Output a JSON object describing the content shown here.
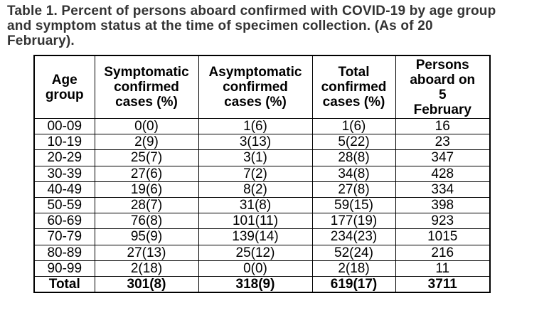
{
  "caption": "Table 1. Percent of persons aboard confirmed with COVID-19 by age group\nand symptom status at the time of specimen collection. (As of 20\nFebruary).",
  "table": {
    "columns": [
      {
        "key": "age_group",
        "label": "Age\ngroup"
      },
      {
        "key": "symptomatic",
        "label": "Symptomatic\nconfirmed\ncases (%)"
      },
      {
        "key": "asymptomatic",
        "label": "Asymptomatic\nconfirmed\ncases (%)"
      },
      {
        "key": "total_confirmed",
        "label": "Total\nconfirmed\ncases (%)"
      },
      {
        "key": "persons_aboard",
        "label": "Persons\naboard on\n5\nFebruary"
      }
    ],
    "rows": [
      {
        "age_group": "00-09",
        "symptomatic": "0(0)",
        "asymptomatic": "1(6)",
        "total_confirmed": "1(6)",
        "persons_aboard": "16"
      },
      {
        "age_group": "10-19",
        "symptomatic": "2(9)",
        "asymptomatic": "3(13)",
        "total_confirmed": "5(22)",
        "persons_aboard": "23"
      },
      {
        "age_group": "20-29",
        "symptomatic": "25(7)",
        "asymptomatic": "3(1)",
        "total_confirmed": "28(8)",
        "persons_aboard": "347"
      },
      {
        "age_group": "30-39",
        "symptomatic": "27(6)",
        "asymptomatic": "7(2)",
        "total_confirmed": "34(8)",
        "persons_aboard": "428"
      },
      {
        "age_group": "40-49",
        "symptomatic": "19(6)",
        "asymptomatic": "8(2)",
        "total_confirmed": "27(8)",
        "persons_aboard": "334"
      },
      {
        "age_group": "50-59",
        "symptomatic": "28(7)",
        "asymptomatic": "31(8)",
        "total_confirmed": "59(15)",
        "persons_aboard": "398"
      },
      {
        "age_group": "60-69",
        "symptomatic": "76(8)",
        "asymptomatic": "101(11)",
        "total_confirmed": "177(19)",
        "persons_aboard": "923"
      },
      {
        "age_group": "70-79",
        "symptomatic": "95(9)",
        "asymptomatic": "139(14)",
        "total_confirmed": "234(23)",
        "persons_aboard": "1015"
      },
      {
        "age_group": "80-89",
        "symptomatic": "27(13)",
        "asymptomatic": "25(12)",
        "total_confirmed": "52(24)",
        "persons_aboard": "216"
      },
      {
        "age_group": "90-99",
        "symptomatic": "2(18)",
        "asymptomatic": "0(0)",
        "total_confirmed": "2(18)",
        "persons_aboard": "11"
      }
    ],
    "total_row": {
      "age_group": "Total",
      "symptomatic": "301(8)",
      "asymptomatic": "318(9)",
      "total_confirmed": "619(17)",
      "persons_aboard": "3711"
    }
  },
  "colors": {
    "caption_text": "#333333",
    "table_text": "#000000",
    "border": "#000000",
    "background": "#ffffff"
  }
}
